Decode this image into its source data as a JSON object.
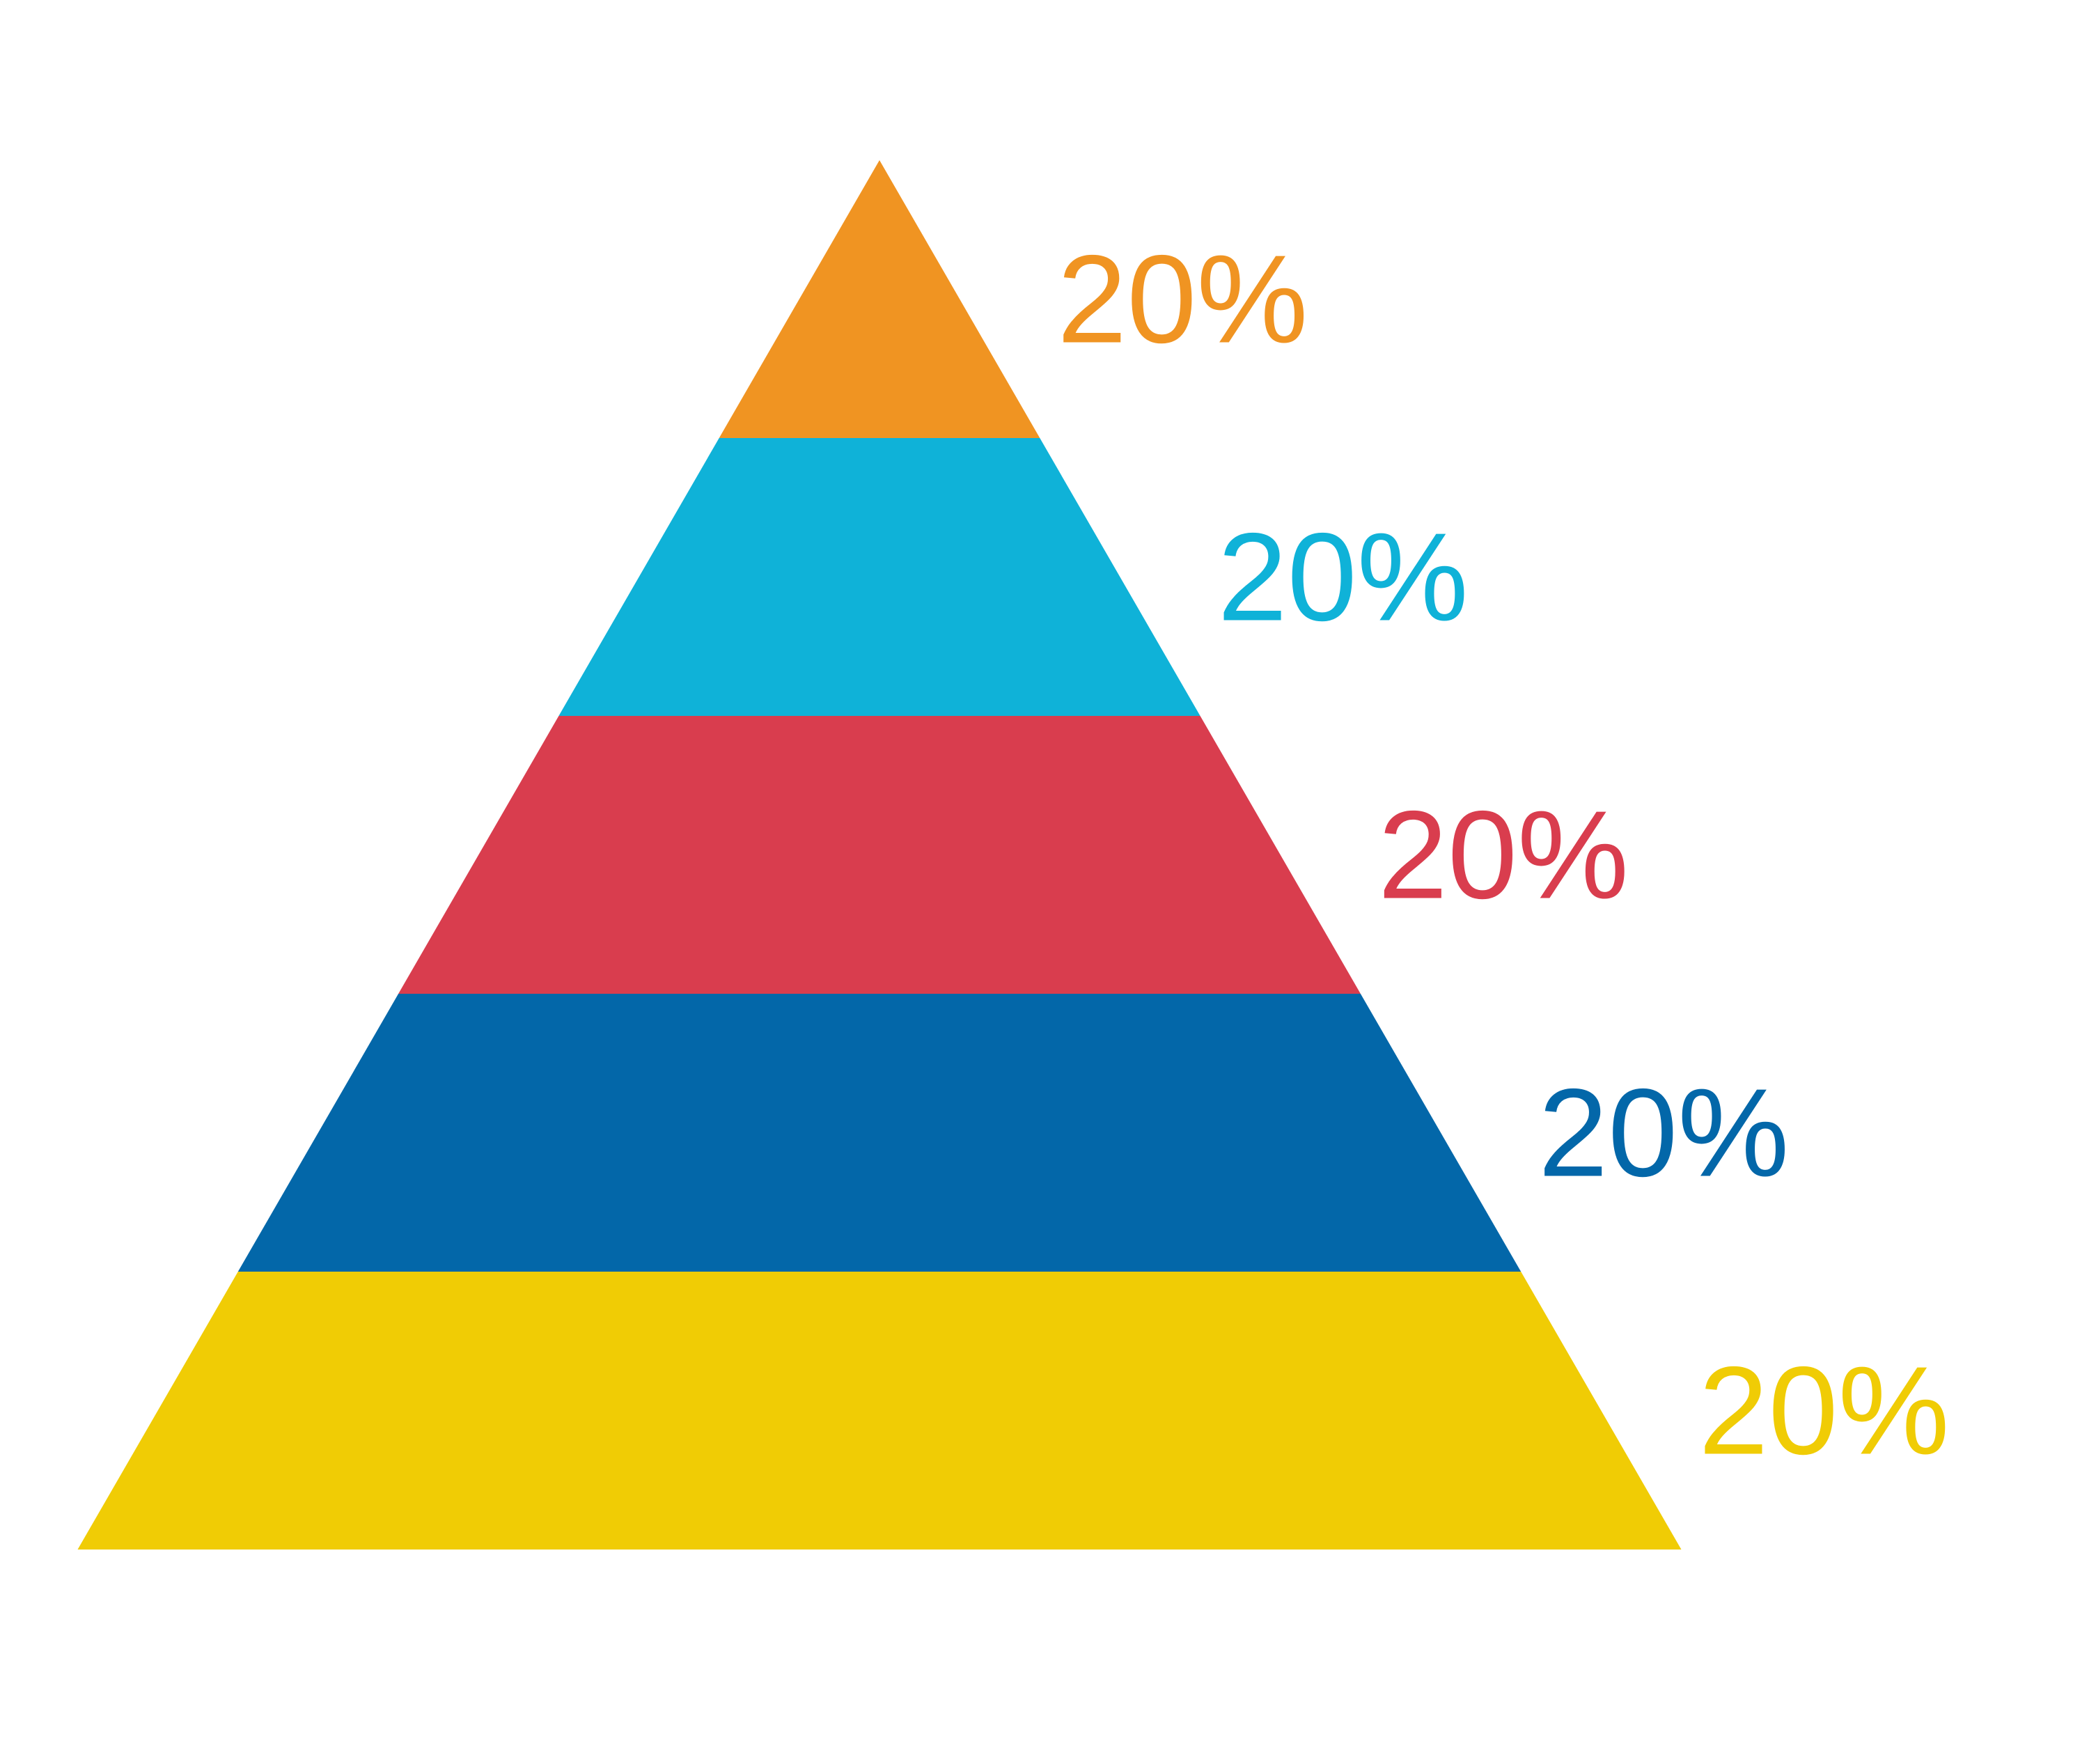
{
  "chart_data": {
    "type": "pyramid",
    "title": "",
    "levels": [
      {
        "value": 20,
        "label": "20%",
        "color": "#F09422"
      },
      {
        "value": 20,
        "label": "20%",
        "color": "#0FB2D8"
      },
      {
        "value": 20,
        "label": "20%",
        "color": "#D93D4E"
      },
      {
        "value": 20,
        "label": "20%",
        "color": "#0367A9"
      },
      {
        "value": 20,
        "label": "20%",
        "color": "#F0CC05"
      }
    ]
  }
}
